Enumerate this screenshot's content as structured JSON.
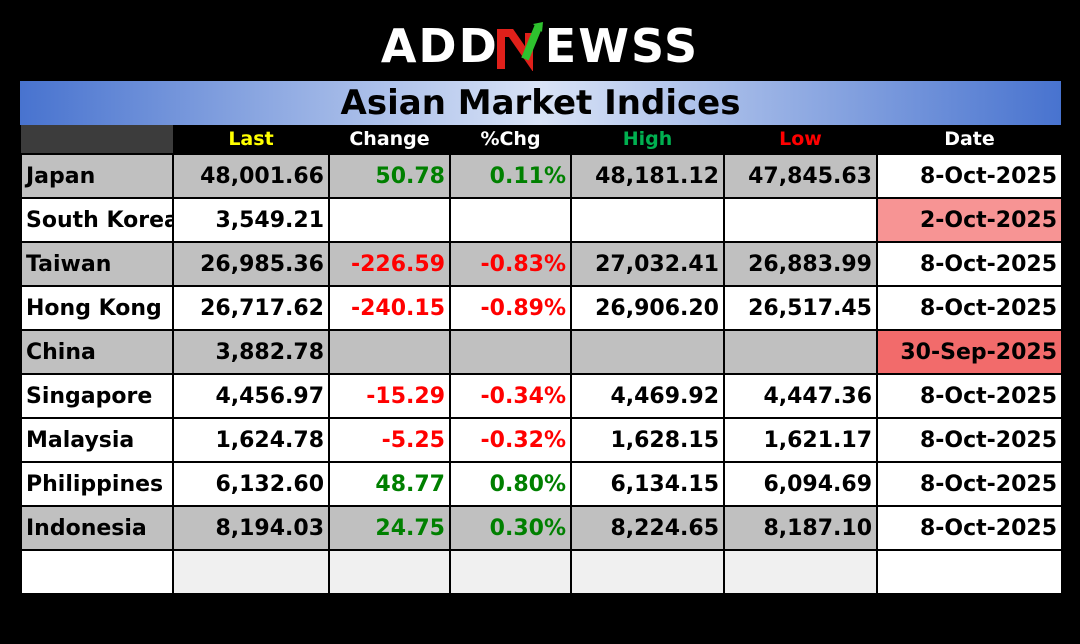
{
  "brand": {
    "logo_pre": "ADD",
    "logo_post": "EWSS"
  },
  "title": "Asian Market Indices",
  "headers": [
    "",
    "Last",
    "Change",
    "%Chg",
    "High",
    "Low",
    "Date"
  ],
  "rows": [
    {
      "name": "Japan",
      "last": "48,001.66",
      "change": "50.78",
      "pct": "0.11%",
      "high": "48,181.12",
      "low": "47,845.63",
      "date": "8-Oct-2025"
    },
    {
      "name": "South Korea",
      "last": "3,549.21",
      "change": "",
      "pct": "",
      "high": "",
      "low": "",
      "date": "2-Oct-2025"
    },
    {
      "name": "Taiwan",
      "last": "26,985.36",
      "change": "-226.59",
      "pct": "-0.83%",
      "high": "27,032.41",
      "low": "26,883.99",
      "date": "8-Oct-2025"
    },
    {
      "name": "Hong Kong",
      "last": "26,717.62",
      "change": "-240.15",
      "pct": "-0.89%",
      "high": "26,906.20",
      "low": "26,517.45",
      "date": "8-Oct-2025"
    },
    {
      "name": "China",
      "last": "3,882.78",
      "change": "",
      "pct": "",
      "high": "",
      "low": "",
      "date": "30-Sep-2025"
    },
    {
      "name": "Singapore",
      "last": "4,456.97",
      "change": "-15.29",
      "pct": "-0.34%",
      "high": "4,469.92",
      "low": "4,447.36",
      "date": "8-Oct-2025"
    },
    {
      "name": "Malaysia",
      "last": "1,624.78",
      "change": "-5.25",
      "pct": "-0.32%",
      "high": "1,628.15",
      "low": "1,621.17",
      "date": "8-Oct-2025"
    },
    {
      "name": "Philippines",
      "last": "6,132.60",
      "change": "48.77",
      "pct": "0.80%",
      "high": "6,134.15",
      "low": "6,094.69",
      "date": "8-Oct-2025"
    },
    {
      "name": "Indonesia",
      "last": "8,194.03",
      "change": "24.75",
      "pct": "0.30%",
      "high": "8,224.65",
      "low": "8,187.10",
      "date": "8-Oct-2025"
    }
  ],
  "colors": {
    "positive": "#008000",
    "negative": "#ff0000",
    "header_last": "#ffff00",
    "header_high": "#00b050",
    "header_low": "#ff0000",
    "stale_date_light": "#f79494",
    "stale_date_dark": "#f26b6b"
  }
}
